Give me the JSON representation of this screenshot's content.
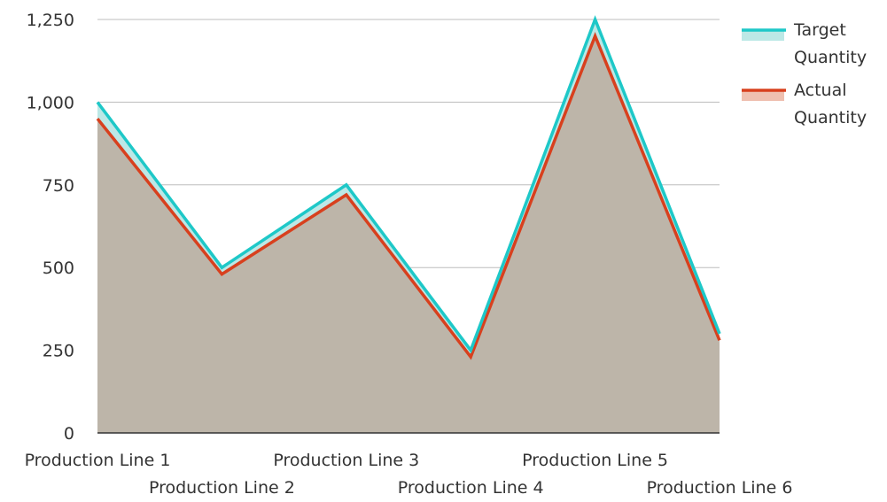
{
  "chart_data": {
    "type": "area",
    "title": "",
    "xlabel": "",
    "ylabel": "",
    "categories": [
      "Production Line 1",
      "Production Line 2",
      "Production Line 3",
      "Production Line 4",
      "Production Line 5",
      "Production Line 6"
    ],
    "series": [
      {
        "name": "Target Quantity",
        "values": [
          1000,
          500,
          750,
          250,
          1250,
          300
        ],
        "line_color": "#1ec8c8",
        "fill_color": "#bce8e6"
      },
      {
        "name": "Actual Quantity",
        "values": [
          950,
          480,
          720,
          230,
          1200,
          280
        ],
        "line_color": "#d8401e",
        "fill_color": "#efc0b0"
      }
    ],
    "overlap_fill_color": "#bdb5a9",
    "ylim": [
      0,
      1250
    ],
    "y_ticks": [
      0,
      250,
      500,
      750,
      1000,
      1250
    ],
    "y_tick_labels": [
      "0",
      "250",
      "500",
      "750",
      "1,000",
      "1,250"
    ],
    "grid": true,
    "grid_color": "#bdbdbd",
    "axis_color": "#333333",
    "legend_position": "right"
  }
}
